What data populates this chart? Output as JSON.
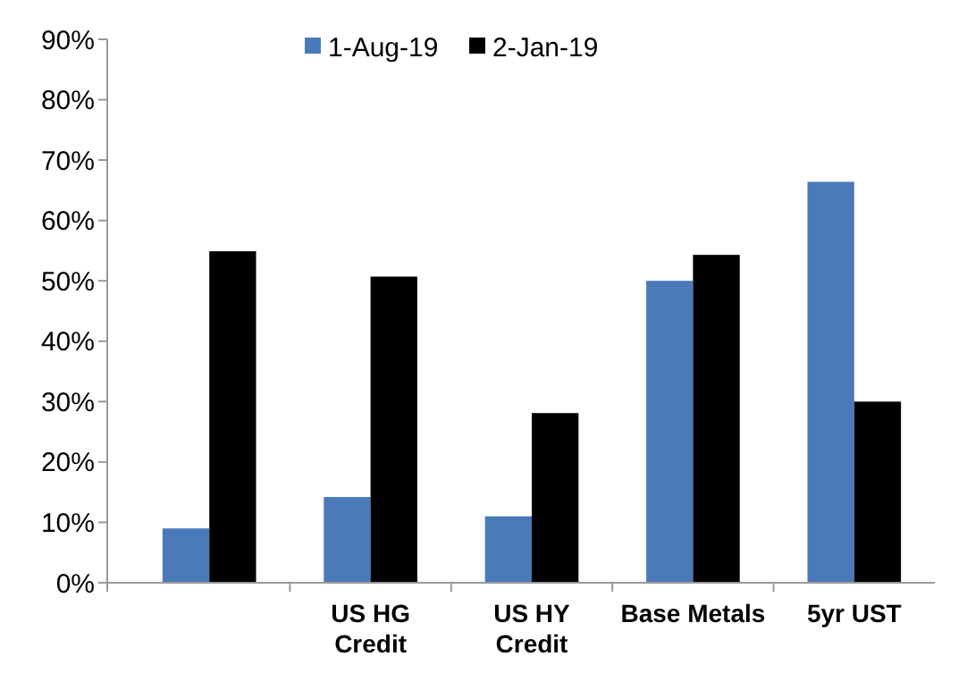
{
  "chart_data": {
    "type": "bar",
    "categories": [
      null,
      "US HG\nCredit",
      "US HY\nCredit",
      "Base Metals",
      "5yr UST"
    ],
    "series": [
      {
        "name": "1-Aug-19",
        "color": "#4a7ab9",
        "values": [
          9,
          14.2,
          11,
          50,
          66.4
        ]
      },
      {
        "name": "2-Jan-19",
        "color": "#000000",
        "values": [
          54.9,
          50.7,
          28.1,
          54.3,
          30
        ]
      }
    ],
    "ylim": [
      0,
      90
    ],
    "yticks": [
      {
        "value": 0,
        "label": "0%"
      },
      {
        "value": 10,
        "label": "10%"
      },
      {
        "value": 20,
        "label": "20%"
      },
      {
        "value": 30,
        "label": "30%"
      },
      {
        "value": 40,
        "label": "40%"
      },
      {
        "value": 50,
        "label": "50%"
      },
      {
        "value": 60,
        "label": "60%"
      },
      {
        "value": 70,
        "label": "70%"
      },
      {
        "value": 80,
        "label": "80%"
      },
      {
        "value": 90,
        "label": "90%"
      }
    ],
    "grid": false,
    "legend": "top"
  }
}
